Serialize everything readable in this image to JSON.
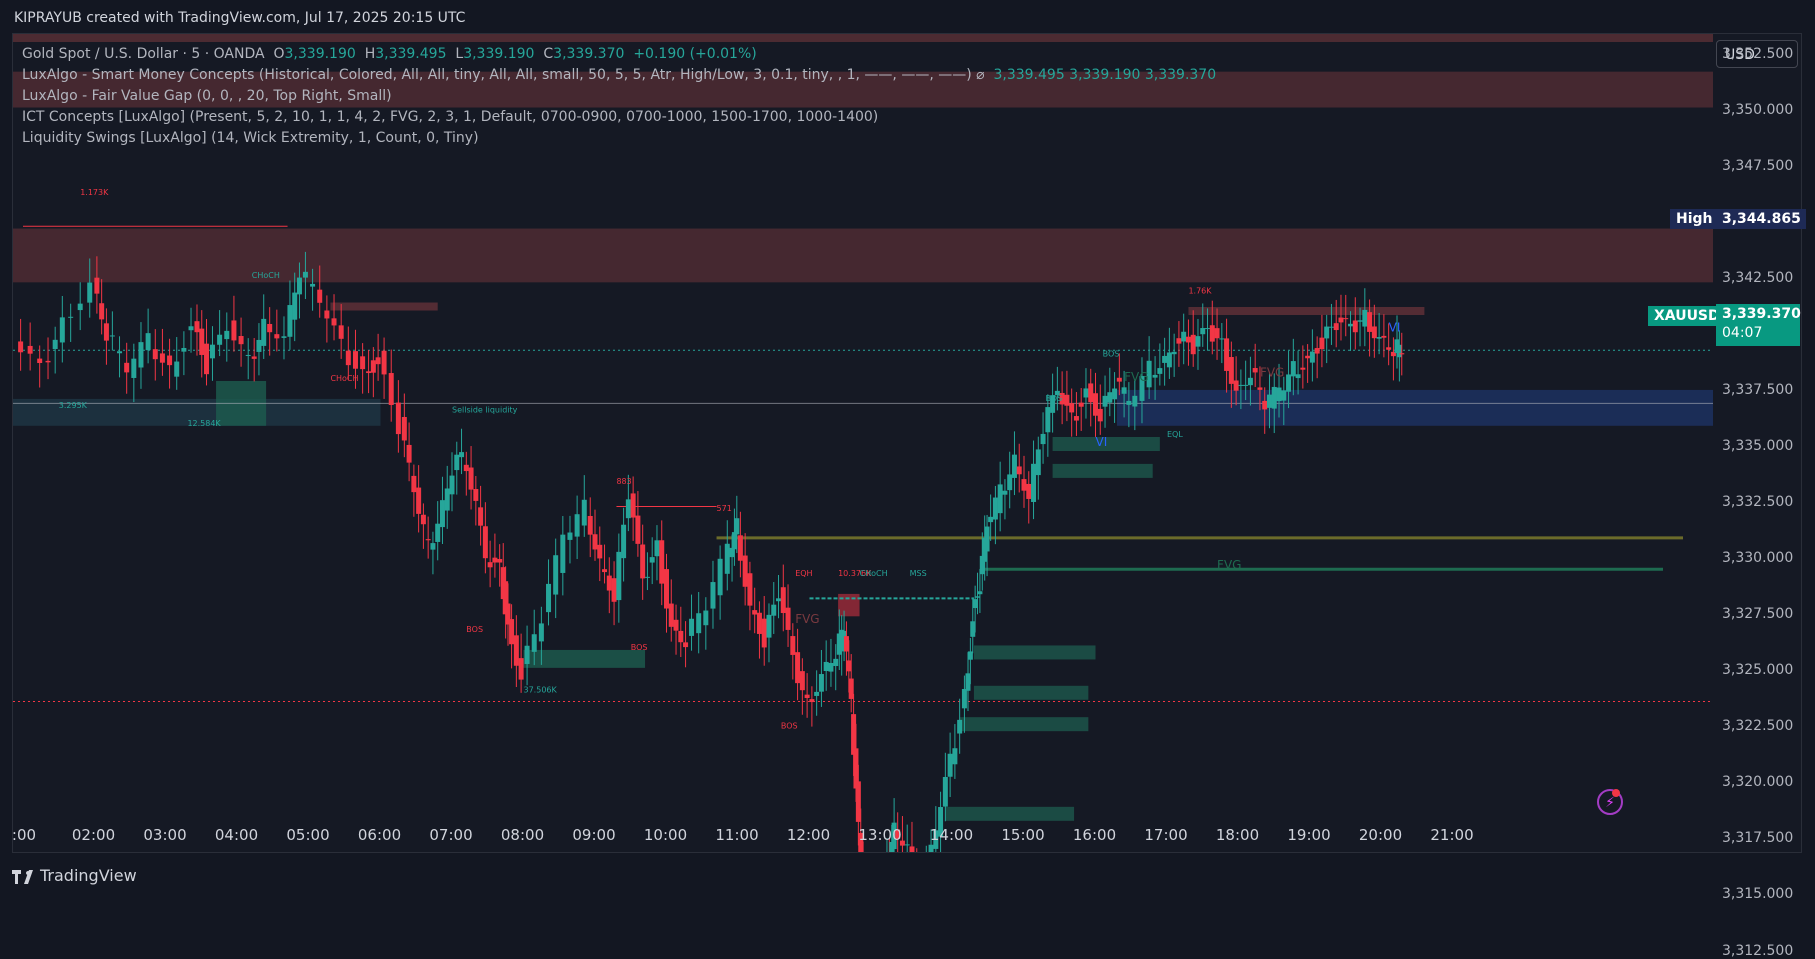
{
  "header": "KIPRAYUB created with TradingView.com, Jul 17, 2025 20:15 UTC",
  "legend": {
    "symbol": "Gold Spot / U.S. Dollar · 5 · OANDA",
    "o_label": "O",
    "o": "3,339.190",
    "h_label": "H",
    "h": "3,339.495",
    "l_label": "L",
    "l": "3,339.190",
    "c_label": "C",
    "c": "3,339.370",
    "change": "+0.190 (+0.01%)",
    "ind1": "LuxAlgo - Smart Money Concepts (Historical, Colored, All, All, tiny, All, All, small, 50, 5, 5, Atr, High/Low, 3, 0.1, tiny, , 1, ——, ——, ——) ⌀",
    "ind1_vals": "3,339.495  3,339.190  3,339.370",
    "ind2": "LuxAlgo - Fair Value Gap (0, 0, , 20, Top Right, Small)",
    "ind3": "ICT Concepts [LuxAlgo] (Present, 5, 2, 10, 1, 1, 4, 2, FVG, 2, 3, 1, Default, 0700-0900, 0700-1000, 1500-1700, 1000-1400)",
    "ind4": "Liquidity Swings [LuxAlgo] (14, Wick Extremity, 1, Count, 0, Tiny)"
  },
  "currency": "USD",
  "tags": {
    "high_label": "High",
    "high_value": "3,344.865",
    "symbol": "XAUUSD",
    "price": "3,339.370",
    "countdown": "04:07"
  },
  "footer": "TradingView",
  "chart_data": {
    "type": "candlestick",
    "title": "Gold Spot / U.S. Dollar · 5 · OANDA",
    "ylim": [
      3310.5,
      3353.5
    ],
    "y_ticks": [
      "3,352.500",
      "3,350.000",
      "3,347.500",
      "3,342.500",
      "3,340.000",
      "3,337.500",
      "3,335.000",
      "3,332.500",
      "3,330.000",
      "3,327.500",
      "3,325.000",
      "3,322.500",
      "3,320.000",
      "3,317.500",
      "3,315.000",
      "3,312.500"
    ],
    "y_tick_values": [
      3352.5,
      3350,
      3347.5,
      3342.5,
      3340,
      3337.5,
      3335,
      3332.5,
      3330,
      3327.5,
      3325,
      3322.5,
      3320,
      3317.5,
      3315,
      3312.5
    ],
    "x_ticks": [
      ":00",
      "02:00",
      "03:00",
      "04:00",
      "05:00",
      "06:00",
      "07:00",
      "08:00",
      "09:00",
      "10:00",
      "11:00",
      "12:00",
      "13:00",
      "14:00",
      "15:00",
      "16:00",
      "17:00",
      "18:00",
      "19:00",
      "20:00",
      "21:00"
    ],
    "x_tick_hours": [
      1,
      2,
      3,
      4,
      5,
      6,
      7,
      8,
      9,
      10,
      11,
      12,
      13,
      14,
      15,
      16,
      17,
      18,
      19,
      20,
      21
    ],
    "price_path": [
      [
        0.9,
        3339.5
      ],
      [
        1.3,
        3338.5
      ],
      [
        1.6,
        3340.5
      ],
      [
        2.0,
        3342.5
      ],
      [
        2.2,
        3340.2
      ],
      [
        2.5,
        3338.5
      ],
      [
        2.8,
        3339.8
      ],
      [
        3.1,
        3338.4
      ],
      [
        3.4,
        3340.6
      ],
      [
        3.6,
        3338.7
      ],
      [
        3.9,
        3340.3
      ],
      [
        4.2,
        3338.8
      ],
      [
        4.4,
        3340.5
      ],
      [
        4.7,
        3340.2
      ],
      [
        4.9,
        3343.0
      ],
      [
        5.2,
        3341.5
      ],
      [
        5.5,
        3339.5
      ],
      [
        5.8,
        3338.3
      ],
      [
        6.0,
        3339.0
      ],
      [
        6.3,
        3336.0
      ],
      [
        6.5,
        3333.0
      ],
      [
        6.7,
        3330.5
      ],
      [
        6.9,
        3332.5
      ],
      [
        7.1,
        3335.0
      ],
      [
        7.3,
        3333.5
      ],
      [
        7.5,
        3330.0
      ],
      [
        7.7,
        3329.5
      ],
      [
        7.8,
        3327.0
      ],
      [
        8.0,
        3325.0
      ],
      [
        8.3,
        3327.5
      ],
      [
        8.6,
        3331.0
      ],
      [
        8.9,
        3332.3
      ],
      [
        9.1,
        3330.0
      ],
      [
        9.3,
        3328.5
      ],
      [
        9.5,
        3333.0
      ],
      [
        9.7,
        3329.0
      ],
      [
        9.9,
        3330.5
      ],
      [
        10.1,
        3327.0
      ],
      [
        10.3,
        3326.5
      ],
      [
        10.6,
        3328.0
      ],
      [
        10.9,
        3330.5
      ],
      [
        11.0,
        3331.5
      ],
      [
        11.2,
        3328.0
      ],
      [
        11.4,
        3326.5
      ],
      [
        11.6,
        3328.5
      ],
      [
        11.8,
        3325.5
      ],
      [
        12.0,
        3323.5
      ],
      [
        12.2,
        3325.0
      ],
      [
        12.4,
        3326.0
      ],
      [
        12.5,
        3327.0
      ],
      [
        12.6,
        3323.5
      ],
      [
        12.7,
        3318.0
      ],
      [
        12.8,
        3313.5
      ],
      [
        12.9,
        3312.0
      ],
      [
        13.0,
        3313.5
      ],
      [
        13.1,
        3316.5
      ],
      [
        13.2,
        3318.0
      ],
      [
        13.4,
        3317.5
      ],
      [
        13.6,
        3315.0
      ],
      [
        13.8,
        3318.0
      ],
      [
        14.0,
        3321.0
      ],
      [
        14.2,
        3324.0
      ],
      [
        14.3,
        3327.5
      ],
      [
        14.4,
        3329.0
      ],
      [
        14.5,
        3331.5
      ],
      [
        14.7,
        3333.0
      ],
      [
        14.9,
        3334.5
      ],
      [
        15.1,
        3333.0
      ],
      [
        15.3,
        3336.0
      ],
      [
        15.5,
        3337.5
      ],
      [
        15.7,
        3336.2
      ],
      [
        15.9,
        3337.5
      ],
      [
        16.1,
        3336.5
      ],
      [
        16.3,
        3338.0
      ],
      [
        16.5,
        3337.0
      ],
      [
        16.8,
        3338.5
      ],
      [
        17.0,
        3339.0
      ],
      [
        17.2,
        3340.0
      ],
      [
        17.4,
        3339.5
      ],
      [
        17.6,
        3340.2
      ],
      [
        17.8,
        3339.5
      ],
      [
        18.0,
        3337.5
      ],
      [
        18.2,
        3338.5
      ],
      [
        18.4,
        3337.0
      ],
      [
        18.6,
        3337.5
      ],
      [
        18.8,
        3338.5
      ],
      [
        19.0,
        3339.0
      ],
      [
        19.2,
        3339.8
      ],
      [
        19.4,
        3340.5
      ],
      [
        19.6,
        3340.3
      ],
      [
        19.8,
        3340.8
      ],
      [
        20.0,
        3340.0
      ],
      [
        20.2,
        3339.5
      ],
      [
        20.3,
        3339.37
      ]
    ],
    "annotations": [
      "1.173K",
      "CHoCH",
      "CHoCH",
      "3.295K",
      "12.584K",
      "Sellside liquidity",
      "BOS",
      "883",
      "571",
      "BOS",
      "37.506K",
      "EQH",
      "10.376K",
      "CHoCH",
      "MSS",
      "FVG",
      "BOS",
      "BOS",
      "BOS",
      "FVG",
      "FVG",
      "VI",
      "1.76K",
      "EQL",
      "VI",
      "FVG"
    ],
    "current_price": "3,339.370",
    "session_high": "3,344.865"
  }
}
